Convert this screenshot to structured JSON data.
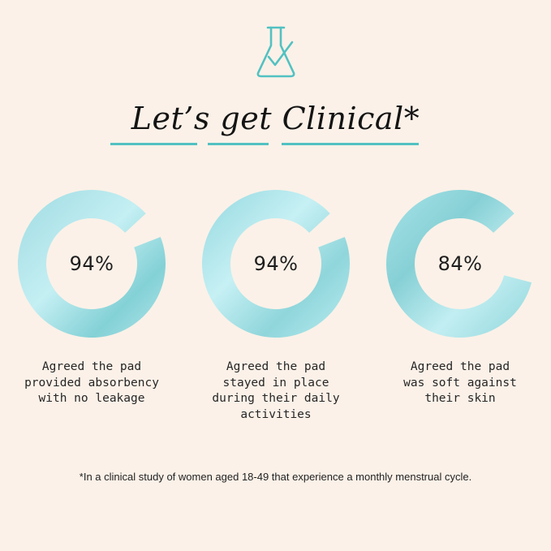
{
  "header": {
    "icon": "flask-check-icon",
    "title": "Let’s get Clinical*"
  },
  "theme": {
    "background": "#fbf1e8",
    "accent": "#52c1c2",
    "ring_light": "#b6e9ee",
    "ring_dark": "#7ecfd5"
  },
  "stats": [
    {
      "value": 94,
      "label": "94%",
      "caption_lines": [
        "Agreed the pad",
        "provided absorbency",
        "with no leakage"
      ]
    },
    {
      "value": 94,
      "label": "94%",
      "caption_lines": [
        "Agreed the pad",
        "stayed in place",
        "during their daily",
        "activities"
      ]
    },
    {
      "value": 84,
      "label": "84%",
      "caption_lines": [
        "Agreed the pad",
        "was soft against",
        "their skin"
      ]
    }
  ],
  "footnote": "*In a clinical study of women aged 18-49 that experience a monthly menstrual cycle."
}
